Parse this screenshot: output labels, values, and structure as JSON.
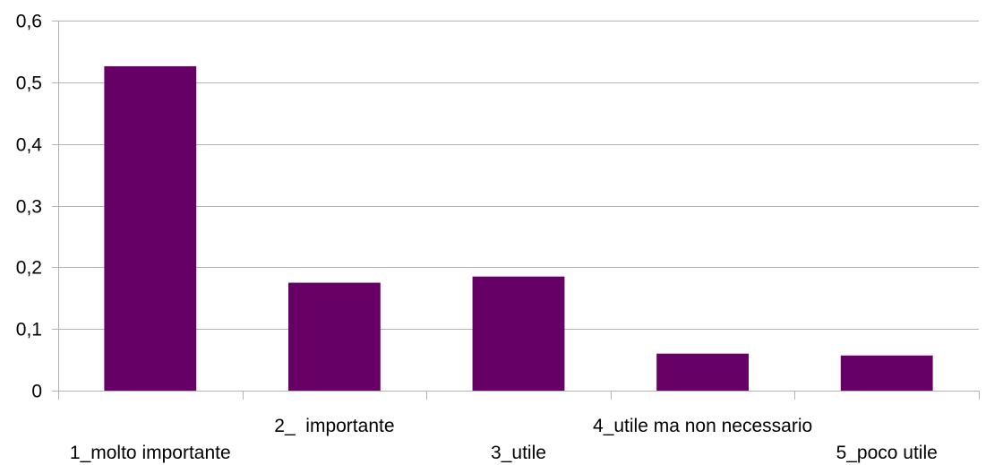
{
  "chart_data": {
    "type": "bar",
    "categories": [
      "1_molto importante",
      "2_  importante",
      "3_utile",
      "4_utile ma non necessario",
      "5_poco utile"
    ],
    "values": [
      0.526,
      0.175,
      0.185,
      0.06,
      0.057
    ],
    "ylim": [
      0,
      0.6
    ],
    "yticks": [
      0,
      0.1,
      0.2,
      0.3,
      0.4,
      0.5,
      0.6
    ],
    "ytick_labels": [
      "0",
      "0,1",
      "0,2",
      "0,3",
      "0,4",
      "0,5",
      "0,6"
    ],
    "grid": true,
    "legend": "none",
    "colors": {
      "bar": "#660066",
      "grid": "#b3b3b3",
      "axis": "#b3b3b3",
      "text": "#000000"
    }
  }
}
